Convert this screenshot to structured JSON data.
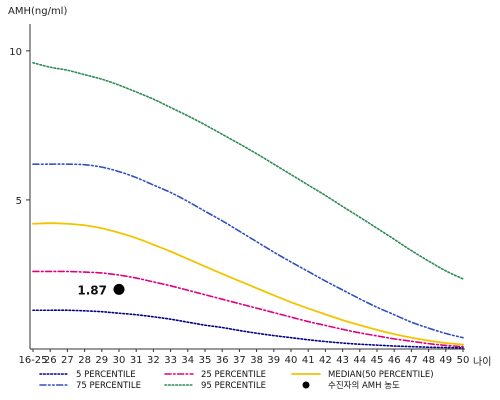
{
  "chart_data": {
    "type": "line",
    "title": "",
    "ylabel": "AMH(ng/ml)",
    "xlabel": "나이",
    "ylim": [
      0,
      10.9
    ],
    "yticks": [
      5,
      10
    ],
    "x": [
      "16-25",
      "26",
      "27",
      "28",
      "29",
      "30",
      "31",
      "32",
      "33",
      "34",
      "35",
      "36",
      "37",
      "38",
      "39",
      "40",
      "41",
      "42",
      "43",
      "44",
      "45",
      "46",
      "47",
      "48",
      "49",
      "50"
    ],
    "series": [
      {
        "name": "5 PERCENTILE",
        "color": "#00008b",
        "dash": "dotted",
        "values": [
          1.3,
          1.3,
          1.3,
          1.28,
          1.25,
          1.2,
          1.15,
          1.08,
          1.0,
          0.9,
          0.8,
          0.72,
          0.62,
          0.53,
          0.45,
          0.38,
          0.31,
          0.25,
          0.2,
          0.16,
          0.13,
          0.1,
          0.08,
          0.06,
          0.05,
          0.04
        ]
      },
      {
        "name": "25 PERCENTILE",
        "color": "#e0007e",
        "dash": "dashdot",
        "values": [
          2.6,
          2.6,
          2.6,
          2.58,
          2.55,
          2.48,
          2.38,
          2.25,
          2.12,
          1.97,
          1.82,
          1.67,
          1.52,
          1.37,
          1.22,
          1.07,
          0.92,
          0.79,
          0.66,
          0.54,
          0.44,
          0.34,
          0.26,
          0.18,
          0.12,
          0.08
        ]
      },
      {
        "name": "MEDIAN(50 PERCENTILE)",
        "color": "#f2c400",
        "dash": "solid",
        "values": [
          4.2,
          4.22,
          4.2,
          4.15,
          4.05,
          3.9,
          3.72,
          3.5,
          3.27,
          3.02,
          2.77,
          2.52,
          2.28,
          2.04,
          1.8,
          1.57,
          1.36,
          1.16,
          0.97,
          0.8,
          0.64,
          0.5,
          0.38,
          0.28,
          0.2,
          0.15
        ]
      },
      {
        "name": "75 PERCENTILE",
        "color": "#3050c0",
        "dash": "dashdotdot",
        "values": [
          6.2,
          6.2,
          6.2,
          6.18,
          6.1,
          5.95,
          5.75,
          5.5,
          5.25,
          4.95,
          4.62,
          4.3,
          3.95,
          3.6,
          3.25,
          2.92,
          2.6,
          2.28,
          1.98,
          1.68,
          1.4,
          1.15,
          0.9,
          0.7,
          0.52,
          0.38
        ]
      },
      {
        "name": "95 PERCENTILE",
        "color": "#2e8b57",
        "dash": "dotted",
        "values": [
          9.6,
          9.45,
          9.35,
          9.2,
          9.05,
          8.85,
          8.62,
          8.38,
          8.1,
          7.82,
          7.52,
          7.2,
          6.88,
          6.55,
          6.2,
          5.85,
          5.5,
          5.15,
          4.78,
          4.42,
          4.05,
          3.68,
          3.3,
          2.95,
          2.62,
          2.35
        ]
      }
    ],
    "annotation": {
      "label": "1.87",
      "x": "30",
      "y": 2.0,
      "legend_label": "수진자의 AMH 농도"
    },
    "legend_order": [
      "5 PERCENTILE",
      "25 PERCENTILE",
      "MEDIAN(50 PERCENTILE)",
      "75 PERCENTILE",
      "95 PERCENTILE"
    ],
    "grid": false,
    "legend_position": "bottom"
  }
}
